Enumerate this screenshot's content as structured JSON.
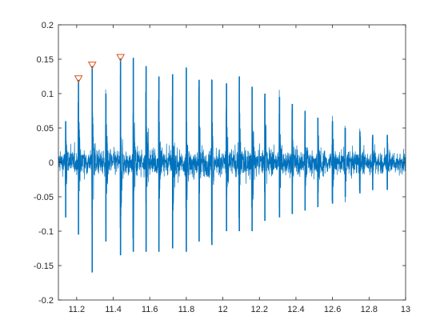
{
  "chart_data": {
    "type": "line",
    "title": "",
    "xlabel": "",
    "ylabel": "",
    "xlim": [
      11.1,
      13.0
    ],
    "ylim": [
      -0.2,
      0.2
    ],
    "grid": false,
    "xticks": [
      11.2,
      11.4,
      11.6,
      11.8,
      12,
      12.2,
      12.4,
      12.6,
      12.8,
      13
    ],
    "xtick_labels": [
      "11.2",
      "11.4",
      "11.6",
      "11.8",
      "12",
      "12.2",
      "12.4",
      "12.6",
      "12.8",
      "13"
    ],
    "yticks": [
      -0.2,
      -0.15,
      -0.1,
      -0.05,
      0,
      0.05,
      0.1,
      0.15,
      0.2
    ],
    "ytick_labels": [
      "-0.2",
      "-0.15",
      "-0.1",
      "-0.05",
      "0",
      "0.05",
      "0.1",
      "0.15",
      "0.2"
    ],
    "signal": {
      "color": "#0072BD",
      "noise_envelope": [
        [
          11.1,
          0.028
        ],
        [
          11.3,
          0.032
        ],
        [
          11.6,
          0.035
        ],
        [
          11.9,
          0.036
        ],
        [
          12.2,
          0.035
        ],
        [
          12.5,
          0.032
        ],
        [
          12.8,
          0.03
        ],
        [
          13.0,
          0.028
        ]
      ],
      "bursts": [
        {
          "x": 11.14,
          "pos": 0.06,
          "neg": -0.08
        },
        {
          "x": 11.21,
          "pos": 0.12,
          "neg": -0.105
        },
        {
          "x": 11.285,
          "pos": 0.14,
          "neg": -0.16
        },
        {
          "x": 11.36,
          "pos": 0.1,
          "neg": -0.115
        },
        {
          "x": 11.44,
          "pos": 0.151,
          "neg": -0.135
        },
        {
          "x": 11.51,
          "pos": 0.152,
          "neg": -0.13
        },
        {
          "x": 11.58,
          "pos": 0.14,
          "neg": -0.13
        },
        {
          "x": 11.65,
          "pos": 0.125,
          "neg": -0.13
        },
        {
          "x": 11.725,
          "pos": 0.128,
          "neg": -0.125
        },
        {
          "x": 11.8,
          "pos": 0.138,
          "neg": -0.13
        },
        {
          "x": 11.87,
          "pos": 0.12,
          "neg": -0.115
        },
        {
          "x": 11.94,
          "pos": 0.12,
          "neg": -0.12
        },
        {
          "x": 12.02,
          "pos": 0.115,
          "neg": -0.1
        },
        {
          "x": 12.09,
          "pos": 0.125,
          "neg": -0.1
        },
        {
          "x": 12.16,
          "pos": 0.11,
          "neg": -0.1
        },
        {
          "x": 12.23,
          "pos": 0.1,
          "neg": -0.085
        },
        {
          "x": 12.31,
          "pos": 0.095,
          "neg": -0.08
        },
        {
          "x": 12.38,
          "pos": 0.085,
          "neg": -0.075
        },
        {
          "x": 12.45,
          "pos": 0.075,
          "neg": -0.07
        },
        {
          "x": 12.52,
          "pos": 0.065,
          "neg": -0.065
        },
        {
          "x": 12.6,
          "pos": 0.06,
          "neg": -0.06
        },
        {
          "x": 12.67,
          "pos": 0.05,
          "neg": -0.05
        },
        {
          "x": 12.75,
          "pos": 0.045,
          "neg": -0.045
        },
        {
          "x": 12.82,
          "pos": 0.04,
          "neg": -0.04
        },
        {
          "x": 12.9,
          "pos": 0.04,
          "neg": -0.04
        }
      ]
    },
    "peak_markers": {
      "shape": "triangle-down",
      "color": "#D95319",
      "points": [
        {
          "x": 11.21,
          "y": 0.12
        },
        {
          "x": 11.285,
          "y": 0.14
        },
        {
          "x": 11.44,
          "y": 0.151
        }
      ]
    }
  }
}
